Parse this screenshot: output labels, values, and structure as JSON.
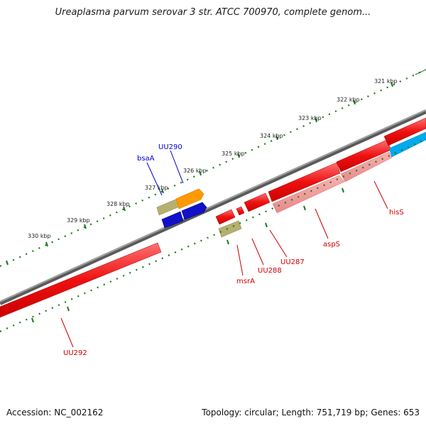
{
  "title": "Ureaplasma parvum serovar 3 str. ATCC 700970, complete genom...",
  "footer": {
    "accession": "Accession: NC_002162",
    "topology": "Topology: circular; Length: 751,719 bp; Genes: 653"
  },
  "ticks": [
    "321 kbp",
    "322 kbp",
    "323 kbp",
    "324 kbp",
    "325 kbp",
    "326 kbp",
    "327 kbp",
    "328 kbp",
    "329 kbp",
    "330 kbp"
  ],
  "genes": {
    "uu290": "UU290",
    "bsaA": "bsaA",
    "hisS": "hisS",
    "aspS": "aspS",
    "uu287": "UU287",
    "uu288": "UU288",
    "msrA": "msrA",
    "uu292": "UU292"
  },
  "colors": {
    "backbone": "#7a7a7a",
    "cds_forward": "#ee1111",
    "cds_reverse": "#ee1111",
    "trna_like": "#ff9900",
    "other_forward": "#1111cc",
    "misc_feature": "#b5b070",
    "highlight": "#00aaee",
    "tick": "#1a7a1a",
    "label_blue": "#0000cc",
    "label_red": "#cc0000"
  }
}
